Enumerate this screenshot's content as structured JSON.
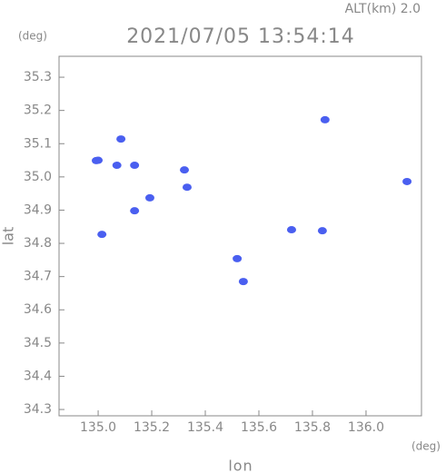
{
  "chart_data": {
    "type": "scatter",
    "title": "2021/07/05 13:54:14",
    "subtitle": "ALT(km) 2.0",
    "x_label": "lon",
    "y_label": "lat",
    "x_unit": "(deg)",
    "y_unit": "(deg)",
    "x": [
      134.993,
      135.0,
      135.085,
      135.07,
      135.136,
      135.193,
      135.136,
      135.014,
      135.322,
      135.332,
      135.847,
      135.722,
      135.837,
      135.519,
      135.542,
      136.153
    ],
    "y": [
      35.049,
      35.05,
      35.114,
      35.035,
      35.035,
      34.937,
      34.898,
      34.827,
      35.021,
      34.969,
      35.172,
      34.841,
      34.838,
      34.754,
      34.685,
      34.986
    ],
    "color": "#4a5ff0",
    "xlim": [
      134.854,
      136.207
    ],
    "ylim": [
      34.281,
      35.363
    ],
    "xticks": [
      {
        "value": 135,
        "label": "135.0"
      },
      135.2,
      135.4,
      135.6,
      135.8,
      {
        "value": 136,
        "label": "136.0"
      }
    ],
    "yticks": [
      34.3,
      34.4,
      34.5,
      34.6,
      34.7,
      34.8,
      34.9,
      {
        "value": 35,
        "label": "35.0"
      },
      35.1,
      35.2,
      35.3
    ]
  }
}
